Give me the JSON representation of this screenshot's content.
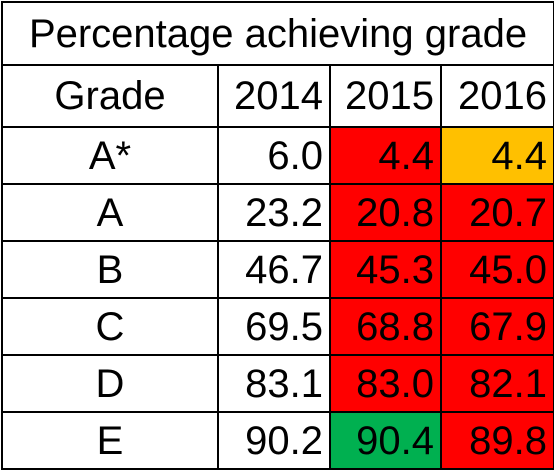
{
  "table": {
    "title": "Percentage achieving grade",
    "header": {
      "grade_label": "Grade",
      "years": [
        "2014",
        "2015",
        "2016"
      ]
    },
    "rows": [
      {
        "grade": "A*",
        "values": [
          "6.0",
          "4.4",
          "4.4"
        ],
        "colors": [
          "#ffffff",
          "#ff0000",
          "#ffc000"
        ]
      },
      {
        "grade": "A",
        "values": [
          "23.2",
          "20.8",
          "20.7"
        ],
        "colors": [
          "#ffffff",
          "#ff0000",
          "#ff0000"
        ]
      },
      {
        "grade": "B",
        "values": [
          "46.7",
          "45.3",
          "45.0"
        ],
        "colors": [
          "#ffffff",
          "#ff0000",
          "#ff0000"
        ]
      },
      {
        "grade": "C",
        "values": [
          "69.5",
          "68.8",
          "67.9"
        ],
        "colors": [
          "#ffffff",
          "#ff0000",
          "#ff0000"
        ]
      },
      {
        "grade": "D",
        "values": [
          "83.1",
          "83.0",
          "82.1"
        ],
        "colors": [
          "#ffffff",
          "#ff0000",
          "#ff0000"
        ]
      },
      {
        "grade": "E",
        "values": [
          "90.2",
          "90.4",
          "89.8"
        ],
        "colors": [
          "#ffffff",
          "#00b050",
          "#ff0000"
        ]
      }
    ]
  }
}
